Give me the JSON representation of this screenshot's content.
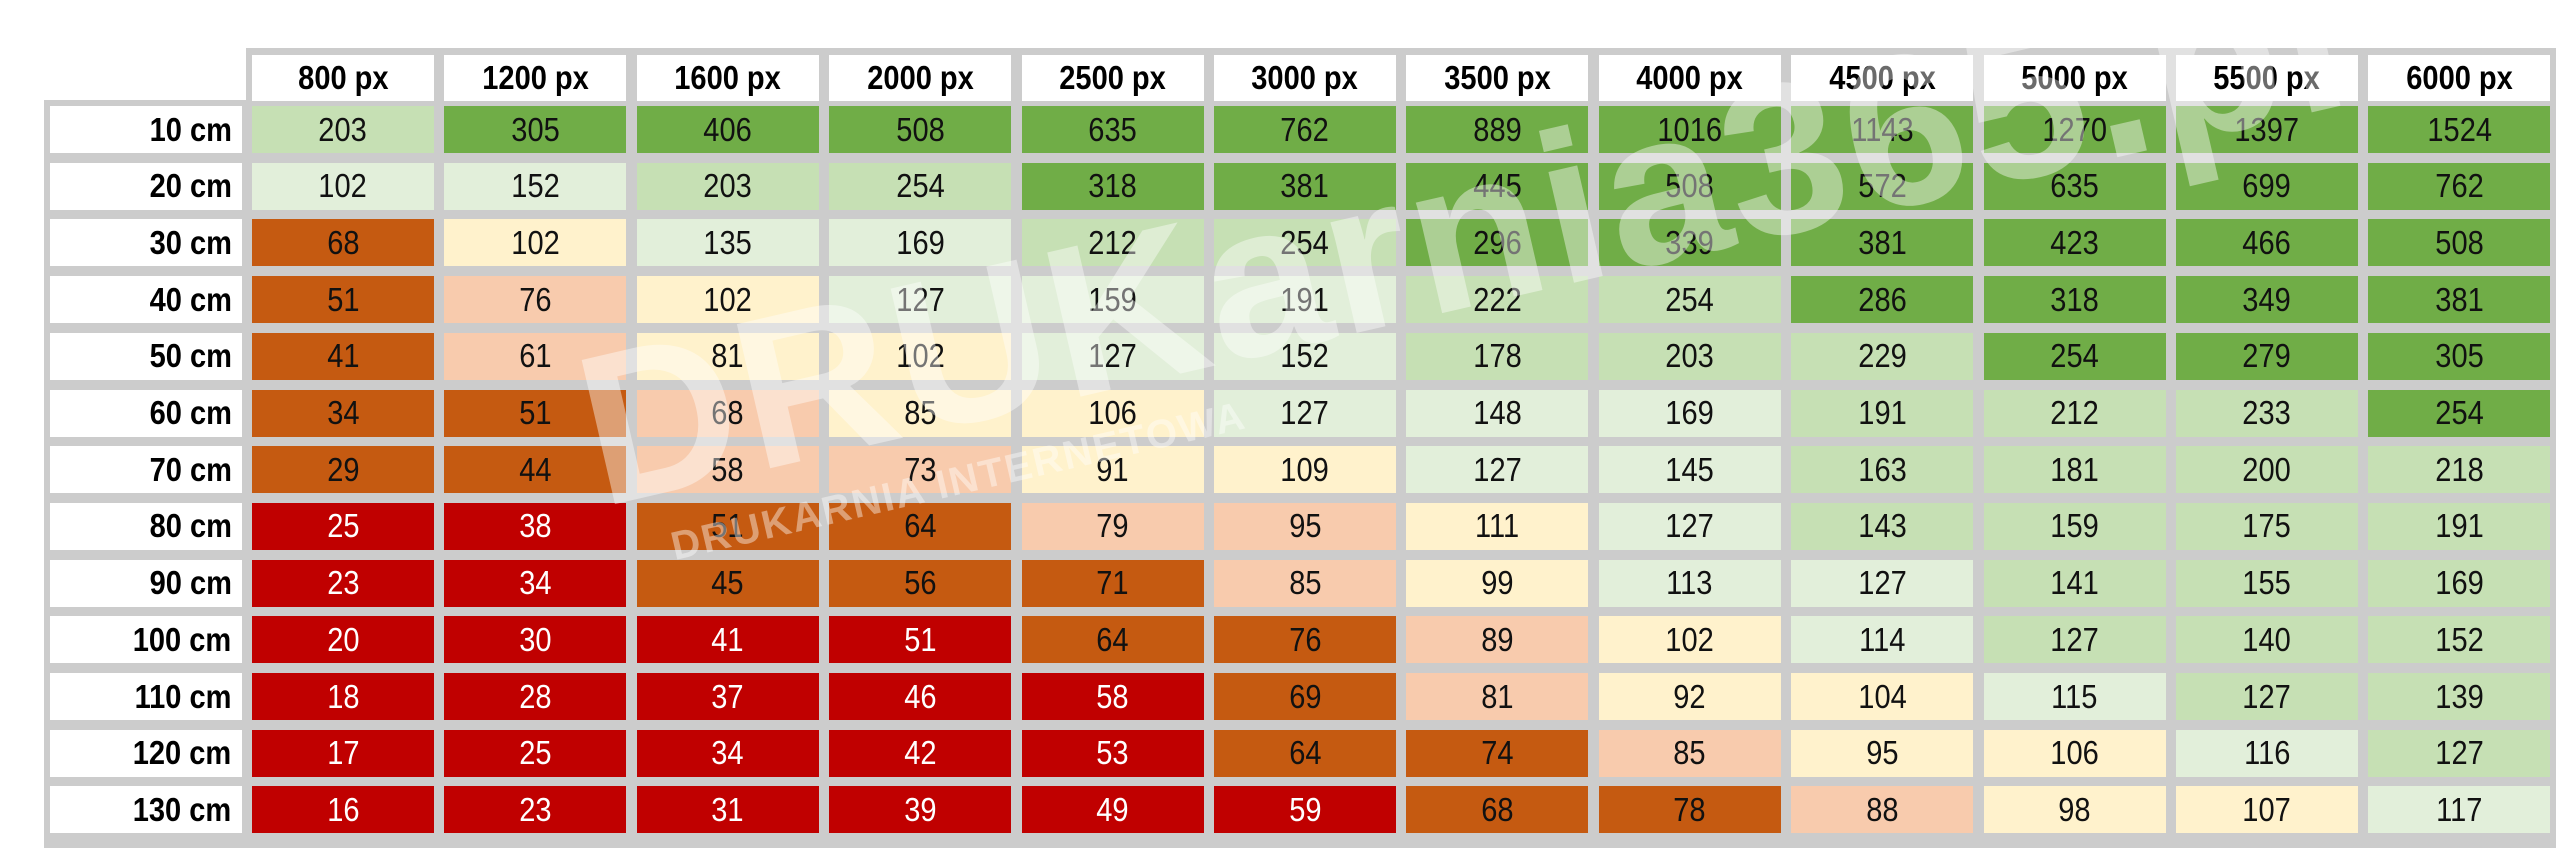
{
  "chart_data": {
    "type": "heatmap",
    "columns": [
      "800 px",
      "1200 px",
      "1600 px",
      "2000 px",
      "2500 px",
      "3000 px",
      "3500 px",
      "4000 px",
      "4500 px",
      "5000 px",
      "5500 px",
      "6000 px"
    ],
    "rows": [
      {
        "label": "10 cm",
        "values": [
          203,
          305,
          406,
          508,
          635,
          762,
          889,
          1016,
          1143,
          1270,
          1397,
          1524
        ],
        "tones": "MGGGGGGGGGGG"
      },
      {
        "label": "20 cm",
        "values": [
          102,
          152,
          203,
          254,
          318,
          381,
          445,
          508,
          572,
          635,
          699,
          762
        ],
        "tones": "LLMMGGGGGGGG"
      },
      {
        "label": "30 cm",
        "values": [
          68,
          102,
          135,
          169,
          212,
          254,
          296,
          339,
          381,
          423,
          466,
          508
        ],
        "tones": "OYLLMMGGGGGG"
      },
      {
        "label": "40 cm",
        "values": [
          51,
          76,
          102,
          127,
          159,
          191,
          222,
          254,
          286,
          318,
          349,
          381
        ],
        "tones": "OSYLLLMMGGGG"
      },
      {
        "label": "50 cm",
        "values": [
          41,
          61,
          81,
          102,
          127,
          152,
          178,
          203,
          229,
          254,
          279,
          305
        ],
        "tones": "OSYYLLMMMGGG"
      },
      {
        "label": "60 cm",
        "values": [
          34,
          51,
          68,
          85,
          106,
          127,
          148,
          169,
          191,
          212,
          233,
          254
        ],
        "tones": "OOSYYLLLMMMG"
      },
      {
        "label": "70 cm",
        "values": [
          29,
          44,
          58,
          73,
          91,
          109,
          127,
          145,
          163,
          181,
          200,
          218
        ],
        "tones": "OOSSYYLLMMMM"
      },
      {
        "label": "80 cm",
        "values": [
          25,
          38,
          51,
          64,
          79,
          95,
          111,
          127,
          143,
          159,
          175,
          191
        ],
        "tones": "RROOSSYLMMMM"
      },
      {
        "label": "90 cm",
        "values": [
          23,
          34,
          45,
          56,
          71,
          85,
          99,
          113,
          127,
          141,
          155,
          169
        ],
        "tones": "RROOOSYLLMMM"
      },
      {
        "label": "100 cm",
        "values": [
          20,
          30,
          41,
          51,
          64,
          76,
          89,
          102,
          114,
          127,
          140,
          152
        ],
        "tones": "RRRROOSYLMMM"
      },
      {
        "label": "110 cm",
        "values": [
          18,
          28,
          37,
          46,
          58,
          69,
          81,
          92,
          104,
          115,
          127,
          139
        ],
        "tones": "RRRRROSYYLMM"
      },
      {
        "label": "120 cm",
        "values": [
          17,
          25,
          34,
          42,
          53,
          64,
          74,
          85,
          95,
          106,
          116,
          127
        ],
        "tones": "RRRRROOSYYLM"
      },
      {
        "label": "130 cm",
        "values": [
          16,
          23,
          31,
          39,
          49,
          59,
          68,
          78,
          88,
          98,
          107,
          117
        ],
        "tones": "RRRRRROOSYYL"
      }
    ],
    "palette": {
      "R": {
        "bg": "#c00000",
        "fg": "#ffffff"
      },
      "O": {
        "bg": "#c55a11",
        "fg": "#111111"
      },
      "S": {
        "bg": "#f8cbad",
        "fg": "#111111"
      },
      "Y": {
        "bg": "#fff2cc",
        "fg": "#111111"
      },
      "L": {
        "bg": "#e2efda",
        "fg": "#111111"
      },
      "M": {
        "bg": "#c6e0b4",
        "fg": "#111111"
      },
      "G": {
        "bg": "#70ad47",
        "fg": "#111111"
      }
    },
    "grid_color": "#cccccc"
  },
  "watermark": {
    "main": "DRUKarnia365.pl",
    "sub": "DRUKARNIA INTERNETOWA"
  }
}
